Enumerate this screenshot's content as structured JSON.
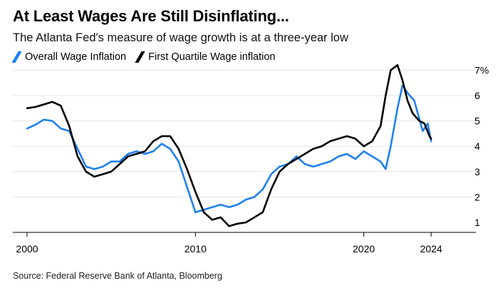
{
  "title": "At Least Wages Are Still Disinflating...",
  "subtitle": "The Atlanta Fed's measure of wage growth is at a three-year low",
  "source": "Source: Federal Reserve Bank of Atlanta, Bloomberg",
  "chart_data": {
    "type": "line",
    "title": "At Least Wages Are Still Disinflating...",
    "subtitle": "The Atlanta Fed's measure of wage growth is at a three-year low",
    "xlabel": "",
    "ylabel": "",
    "xlim": [
      2000,
      2025.3
    ],
    "ylim": [
      0.6,
      7.3
    ],
    "x_ticks": [
      2000,
      2010,
      2020,
      2024
    ],
    "x_tick_labels": [
      "2000",
      "2010",
      "2020",
      "2024"
    ],
    "y_ticks": [
      1,
      2,
      3,
      4,
      5,
      6,
      7
    ],
    "y_tick_labels": [
      "1",
      "2",
      "3",
      "4",
      "5",
      "6",
      "7%"
    ],
    "grid": "horizontal",
    "legend": "top-left",
    "series": [
      {
        "name": "Overall Wage Inflation",
        "color": "#1f80f0",
        "x": [
          2000.0,
          2000.5,
          2001.0,
          2001.5,
          2002.0,
          2002.5,
          2003.0,
          2003.5,
          2004.0,
          2004.5,
          2005.0,
          2005.5,
          2006.0,
          2006.5,
          2007.0,
          2007.5,
          2008.0,
          2008.5,
          2009.0,
          2009.5,
          2009.8,
          2010.0,
          2010.5,
          2011.0,
          2011.5,
          2012.0,
          2012.5,
          2013.0,
          2013.5,
          2014.0,
          2014.5,
          2015.0,
          2015.5,
          2016.0,
          2016.5,
          2017.0,
          2017.5,
          2018.0,
          2018.5,
          2019.0,
          2019.5,
          2020.0,
          2020.5,
          2021.0,
          2021.3,
          2021.6,
          2022.0,
          2022.3,
          2022.6,
          2023.0,
          2023.5,
          2023.8,
          2024.0
        ],
        "y": [
          4.7,
          4.85,
          5.05,
          5.0,
          4.7,
          4.6,
          3.9,
          3.2,
          3.1,
          3.2,
          3.4,
          3.4,
          3.7,
          3.8,
          3.7,
          3.8,
          4.1,
          3.9,
          3.4,
          2.4,
          1.8,
          1.4,
          1.5,
          1.6,
          1.7,
          1.6,
          1.7,
          1.9,
          2.0,
          2.3,
          2.9,
          3.2,
          3.3,
          3.6,
          3.3,
          3.2,
          3.3,
          3.4,
          3.6,
          3.7,
          3.5,
          3.8,
          3.6,
          3.4,
          3.1,
          4.0,
          5.5,
          6.4,
          6.1,
          5.8,
          4.6,
          4.9,
          4.2
        ]
      },
      {
        "name": "First Quartile Wage inflation",
        "color": "#000000",
        "x": [
          2000.0,
          2000.5,
          2001.0,
          2001.5,
          2002.0,
          2002.5,
          2003.0,
          2003.5,
          2004.0,
          2004.5,
          2005.0,
          2005.5,
          2006.0,
          2006.5,
          2007.0,
          2007.5,
          2008.0,
          2008.5,
          2009.0,
          2009.5,
          2010.0,
          2010.5,
          2011.0,
          2011.5,
          2012.0,
          2012.5,
          2013.0,
          2013.5,
          2014.0,
          2014.5,
          2015.0,
          2015.5,
          2016.0,
          2016.5,
          2017.0,
          2017.5,
          2018.0,
          2018.5,
          2019.0,
          2019.5,
          2020.0,
          2020.5,
          2021.0,
          2021.3,
          2021.6,
          2022.0,
          2022.3,
          2022.6,
          2022.9,
          2023.3,
          2023.6,
          2023.9,
          2024.0
        ],
        "y": [
          5.5,
          5.55,
          5.65,
          5.75,
          5.6,
          4.8,
          3.6,
          3.0,
          2.8,
          2.9,
          3.0,
          3.3,
          3.6,
          3.7,
          3.8,
          4.2,
          4.4,
          4.4,
          3.9,
          3.1,
          2.2,
          1.4,
          1.1,
          1.2,
          0.85,
          0.95,
          1.0,
          1.2,
          1.4,
          2.3,
          3.0,
          3.3,
          3.5,
          3.7,
          3.9,
          4.0,
          4.2,
          4.3,
          4.4,
          4.3,
          4.0,
          4.2,
          4.8,
          6.0,
          7.0,
          7.2,
          6.6,
          5.8,
          5.3,
          5.0,
          4.9,
          4.4,
          4.3
        ]
      }
    ]
  }
}
